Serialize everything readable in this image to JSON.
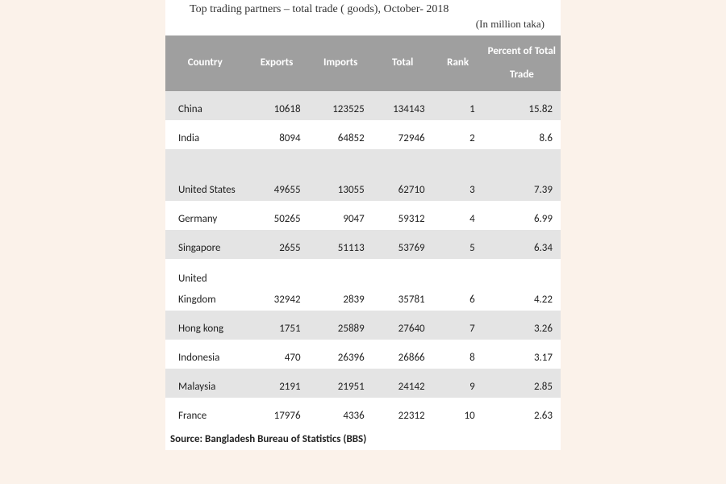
{
  "title": "Top trading partners – total trade ( goods), October- 2018",
  "subtitle": "(In million taka)",
  "source": "Source: Bangladesh Bureau of Statistics (BBS)",
  "table": {
    "type": "table",
    "header_bg": "#9f9f9f",
    "header_fg": "#ffffff",
    "row_odd_bg": "#e4e4e4",
    "row_even_bg": "#ffffff",
    "columns": [
      "Country",
      "Exports",
      "Imports",
      "Total",
      "Rank",
      "Percent of Total Trade"
    ],
    "rows": [
      {
        "country": "China",
        "exports": "10618",
        "imports": "123525",
        "total": "134143",
        "rank": "1",
        "pct": "15.82",
        "tall": false
      },
      {
        "country": "India",
        "exports": "8094",
        "imports": "64852",
        "total": "72946",
        "rank": "2",
        "pct": "8.6",
        "tall": false
      },
      {
        "country": "United States",
        "exports": "49655",
        "imports": "13055",
        "total": "62710",
        "rank": "3",
        "pct": "7.39",
        "tall": true
      },
      {
        "country": "Germany",
        "exports": "50265",
        "imports": "9047",
        "total": "59312",
        "rank": "4",
        "pct": "6.99",
        "tall": false
      },
      {
        "country": "Singapore",
        "exports": "2655",
        "imports": "51113",
        "total": "53769",
        "rank": "5",
        "pct": "6.34",
        "tall": false
      },
      {
        "country": "United Kingdom",
        "exports": "32942",
        "imports": "2839",
        "total": "35781",
        "rank": "6",
        "pct": "4.22",
        "tall": true
      },
      {
        "country": "Hong kong",
        "exports": "1751",
        "imports": "25889",
        "total": "27640",
        "rank": "7",
        "pct": "3.26",
        "tall": false
      },
      {
        "country": "Indonesia",
        "exports": "470",
        "imports": "26396",
        "total": "26866",
        "rank": "8",
        "pct": "3.17",
        "tall": false
      },
      {
        "country": "Malaysia",
        "exports": "2191",
        "imports": "21951",
        "total": "24142",
        "rank": "9",
        "pct": "2.85",
        "tall": false
      },
      {
        "country": "France",
        "exports": "17976",
        "imports": "4336",
        "total": "22312",
        "rank": "10",
        "pct": "2.63",
        "tall": false
      }
    ]
  }
}
